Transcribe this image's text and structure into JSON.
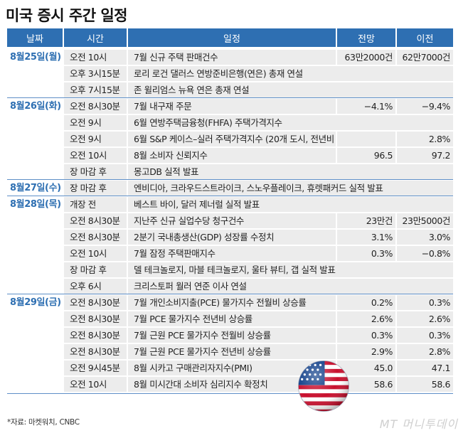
{
  "title": "미국 증시 주간 일정",
  "headers": {
    "date": "날짜",
    "time": "시간",
    "event": "일정",
    "forecast": "전망",
    "previous": "이전"
  },
  "dates": [
    {
      "label": "8월25일(월)",
      "row": 0
    },
    {
      "label": "8월26일(화)",
      "row": 3
    },
    {
      "label": "8월27일(수)",
      "row": 8
    },
    {
      "label": "8월28일(목)",
      "row": 9
    },
    {
      "label": "8월29일(금)",
      "row": 15
    }
  ],
  "rows": [
    {
      "time": "오전 10시",
      "event": "7월 신규 주택 판매건수",
      "forecast": "63만2000건",
      "previous": "62만7000건"
    },
    {
      "time": "오후 3시15분",
      "event": "로리 로건 댈러스 연방준비은행(연은) 총재 연설",
      "forecast": "",
      "previous": ""
    },
    {
      "time": "오후 7시15분",
      "event": "존 윌리엄스 뉴욕 연은 총재 연설",
      "forecast": "",
      "previous": ""
    },
    {
      "time": "오전 8시30분",
      "event": "7월 내구재 주문",
      "forecast": "−4.1%",
      "previous": "−9.4%"
    },
    {
      "time": "오전 9시",
      "event": "6월 연방주택금융청(FHFA) 주택가격지수",
      "forecast": "",
      "previous": ""
    },
    {
      "time": "오전 9시",
      "event": "6월 S&P 케이스–실러 주택가격지수 (20개 도시, 전년비 상승률)",
      "forecast": "",
      "previous": "2.8%"
    },
    {
      "time": "오전 10시",
      "event": "8월 소비자 신뢰지수",
      "forecast": "96.5",
      "previous": "97.2"
    },
    {
      "time": "장 마감 후",
      "event": "몽고DB 실적 발표",
      "forecast": "",
      "previous": ""
    },
    {
      "time": "장 마감 후",
      "event": "엔비디아, 크라우드스트라이크, 스노우플레이크, 휴렛패커드 실적 발표",
      "forecast": "",
      "previous": ""
    },
    {
      "time": "개장 전",
      "event": "베스트 바이, 달러 제너럴 실적 발표",
      "forecast": "",
      "previous": ""
    },
    {
      "time": "오전 8시30분",
      "event": "지난주 신규 실업수당 청구건수",
      "forecast": "23만건",
      "previous": "23만5000건"
    },
    {
      "time": "오전 8시30분",
      "event": "2분기 국내총생산(GDP) 성장률 수정치",
      "forecast": "3.1%",
      "previous": "3.0%"
    },
    {
      "time": "오전 10시",
      "event": "7월 잠정 주택판매지수",
      "forecast": "0.3%",
      "previous": "−0.8%"
    },
    {
      "time": "장 마감 후",
      "event": "델 테크놀로지, 마블 테크놀로지, 울타 뷰티, 갭 실적 발표",
      "forecast": "",
      "previous": ""
    },
    {
      "time": "오후 6시",
      "event": "크리스토퍼 월러 연준 이사 연설",
      "forecast": "",
      "previous": ""
    },
    {
      "time": "오전 8시30분",
      "event": "7월 개인소비지출(PCE) 물가지수 전월비 상승률",
      "forecast": "0.2%",
      "previous": "0.3%"
    },
    {
      "time": "오전 8시30분",
      "event": "7월 PCE 물가지수 전년비 상승률",
      "forecast": "2.6%",
      "previous": "2.6%"
    },
    {
      "time": "오전 8시30분",
      "event": "7월 근원 PCE 물가지수 전월비 상승률",
      "forecast": "0.3%",
      "previous": "0.3%"
    },
    {
      "time": "오전 8시30분",
      "event": "7월 근원 PCE 물가지수 전년비 상승률",
      "forecast": "2.9%",
      "previous": "2.8%"
    },
    {
      "time": "오전 9시45분",
      "event": "8월 시카고 구매관리자지수(PMI)",
      "forecast": "45.0",
      "previous": "47.1"
    },
    {
      "time": "오전 10시",
      "event": "8월 미시간대 소비자 심리지수 확정치",
      "forecast": "58.6",
      "previous": "58.6"
    }
  ],
  "source": "*자료: 마켓워치, CNBC",
  "brand": "MT 머니투데이",
  "flag_icon": "us-flag-icon",
  "colors": {
    "header": "#2e6fb2",
    "cell": "#ececec",
    "date_text": "#2e6fb2"
  }
}
